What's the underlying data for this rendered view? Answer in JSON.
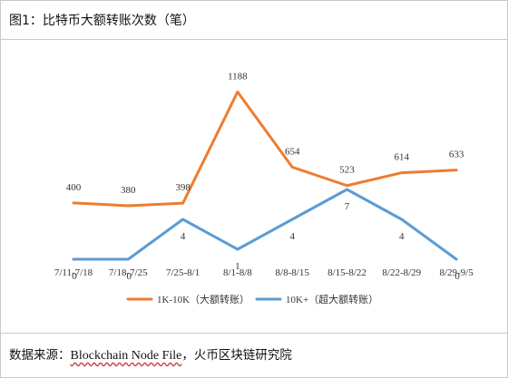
{
  "title": "图1：比特币大额转账次数（笔）",
  "source": {
    "prefix": "数据来源：",
    "name": "Blockchain Node File",
    "suffix": "，火币区块链研究院"
  },
  "colors": {
    "series1": "#ED7D31",
    "series2": "#5B9BD5"
  },
  "chart_data": {
    "type": "line",
    "categories": [
      "7/11-7/18",
      "7/18-7/25",
      "7/25-8/1",
      "8/1-8/8",
      "8/8-8/15",
      "8/15-8/22",
      "8/22-8/29",
      "8/29-9/5"
    ],
    "series": [
      {
        "name": "1K-10K（大额转账）",
        "values": [
          400,
          380,
          398,
          1188,
          654,
          523,
          614,
          633
        ]
      },
      {
        "name": "10K+（超大额转账）",
        "values": [
          0,
          0,
          4,
          1,
          4,
          7,
          4,
          0
        ]
      }
    ],
    "series_axes": [
      "left-hidden",
      "right-hidden"
    ],
    "ylim_left": [
      0,
      1300
    ],
    "ylim_right": [
      0,
      10
    ],
    "legend_position": "bottom",
    "grid": false
  }
}
